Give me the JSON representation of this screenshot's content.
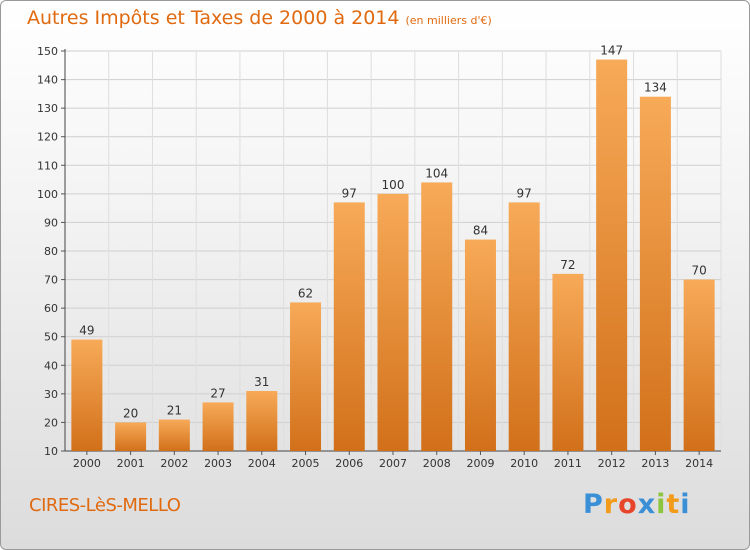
{
  "chart_data": {
    "type": "bar",
    "title": "Autres Impôts et Taxes de 2000 à 2014",
    "subtitle": "(en milliers d'€)",
    "categories": [
      "2000",
      "2001",
      "2002",
      "2003",
      "2004",
      "2005",
      "2006",
      "2007",
      "2008",
      "2009",
      "2010",
      "2011",
      "2012",
      "2013",
      "2014"
    ],
    "values": [
      49,
      20,
      21,
      27,
      31,
      62,
      97,
      100,
      104,
      84,
      97,
      72,
      147,
      134,
      70
    ],
    "ylim": [
      10,
      150
    ],
    "yticks": [
      10,
      20,
      30,
      40,
      50,
      60,
      70,
      80,
      90,
      100,
      110,
      120,
      130,
      140,
      150
    ],
    "grid": true,
    "xlabel": "",
    "ylabel": ""
  },
  "commune": "CIRES-LèS-MELLO",
  "brand": {
    "letters": [
      "P",
      "r",
      "o",
      "x",
      "i",
      "t",
      "i"
    ],
    "colors": [
      "#3a8fd6",
      "#f29a1a",
      "#e8462b",
      "#3a8fd6",
      "#8cc63e",
      "#f29a1a",
      "#3a8fd6"
    ]
  },
  "colors": {
    "title": "#e06a10",
    "bar_top": "#f7aa58",
    "bar_bottom": "#d2701a"
  }
}
